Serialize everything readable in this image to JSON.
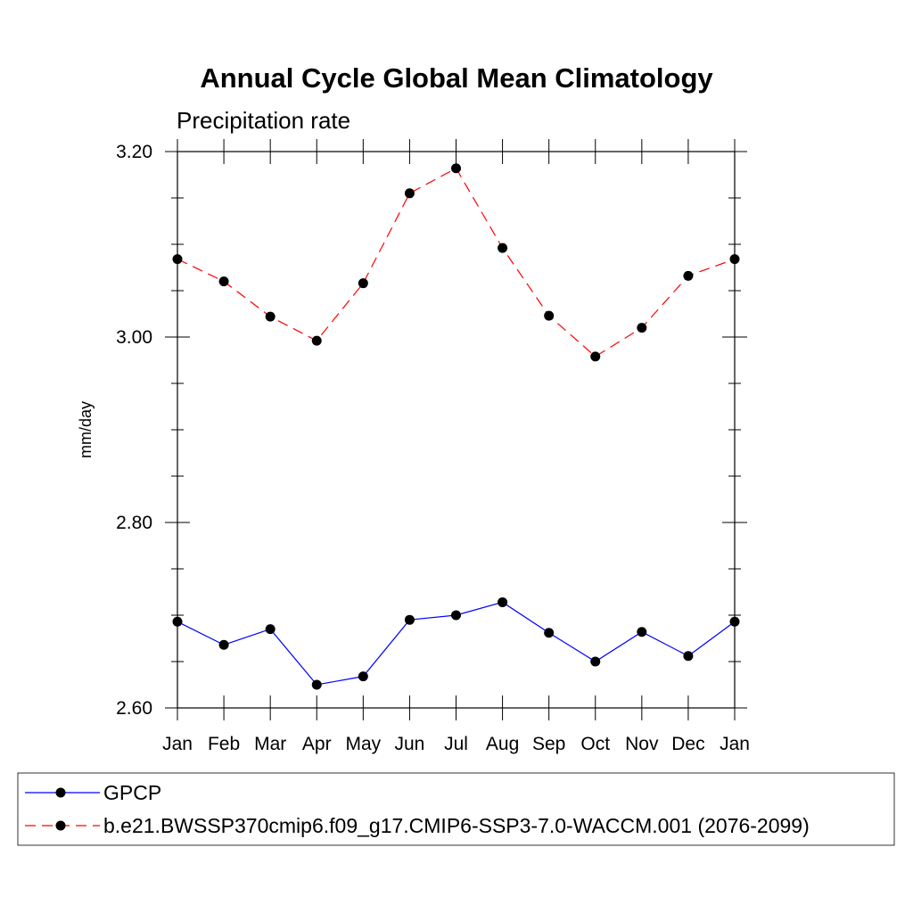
{
  "chart_data": {
    "type": "line",
    "title": "Annual Cycle Global Mean Climatology",
    "subtitle": "Precipitation rate",
    "ylabel": "mm/day",
    "xlabel": "",
    "categories": [
      "Jan",
      "Feb",
      "Mar",
      "Apr",
      "May",
      "Jun",
      "Jul",
      "Aug",
      "Sep",
      "Oct",
      "Nov",
      "Dec",
      "Jan"
    ],
    "ylim": [
      2.6,
      3.2
    ],
    "yticks": [
      "2.60",
      "2.80",
      "3.00",
      "3.20"
    ],
    "ytick_values": [
      2.6,
      2.8,
      3.0,
      3.2
    ],
    "grid": false,
    "legend_position": "bottom",
    "series": [
      {
        "name": "GPCP",
        "color": "#0000ff",
        "style": "solid",
        "marker": "filled-circle",
        "values": [
          2.693,
          2.668,
          2.685,
          2.625,
          2.634,
          2.695,
          2.7,
          2.714,
          2.681,
          2.65,
          2.682,
          2.656,
          2.693
        ]
      },
      {
        "name": "b.e21.BWSSP370cmip6.f09_g17.CMIP6-SSP3-7.0-WACCM.001 (2076-2099)",
        "color": "#ff0000",
        "style": "dashed",
        "marker": "filled-circle",
        "values": [
          3.084,
          3.06,
          3.022,
          2.996,
          3.058,
          3.155,
          3.182,
          3.096,
          3.023,
          2.979,
          3.01,
          3.066,
          3.084
        ]
      }
    ]
  }
}
